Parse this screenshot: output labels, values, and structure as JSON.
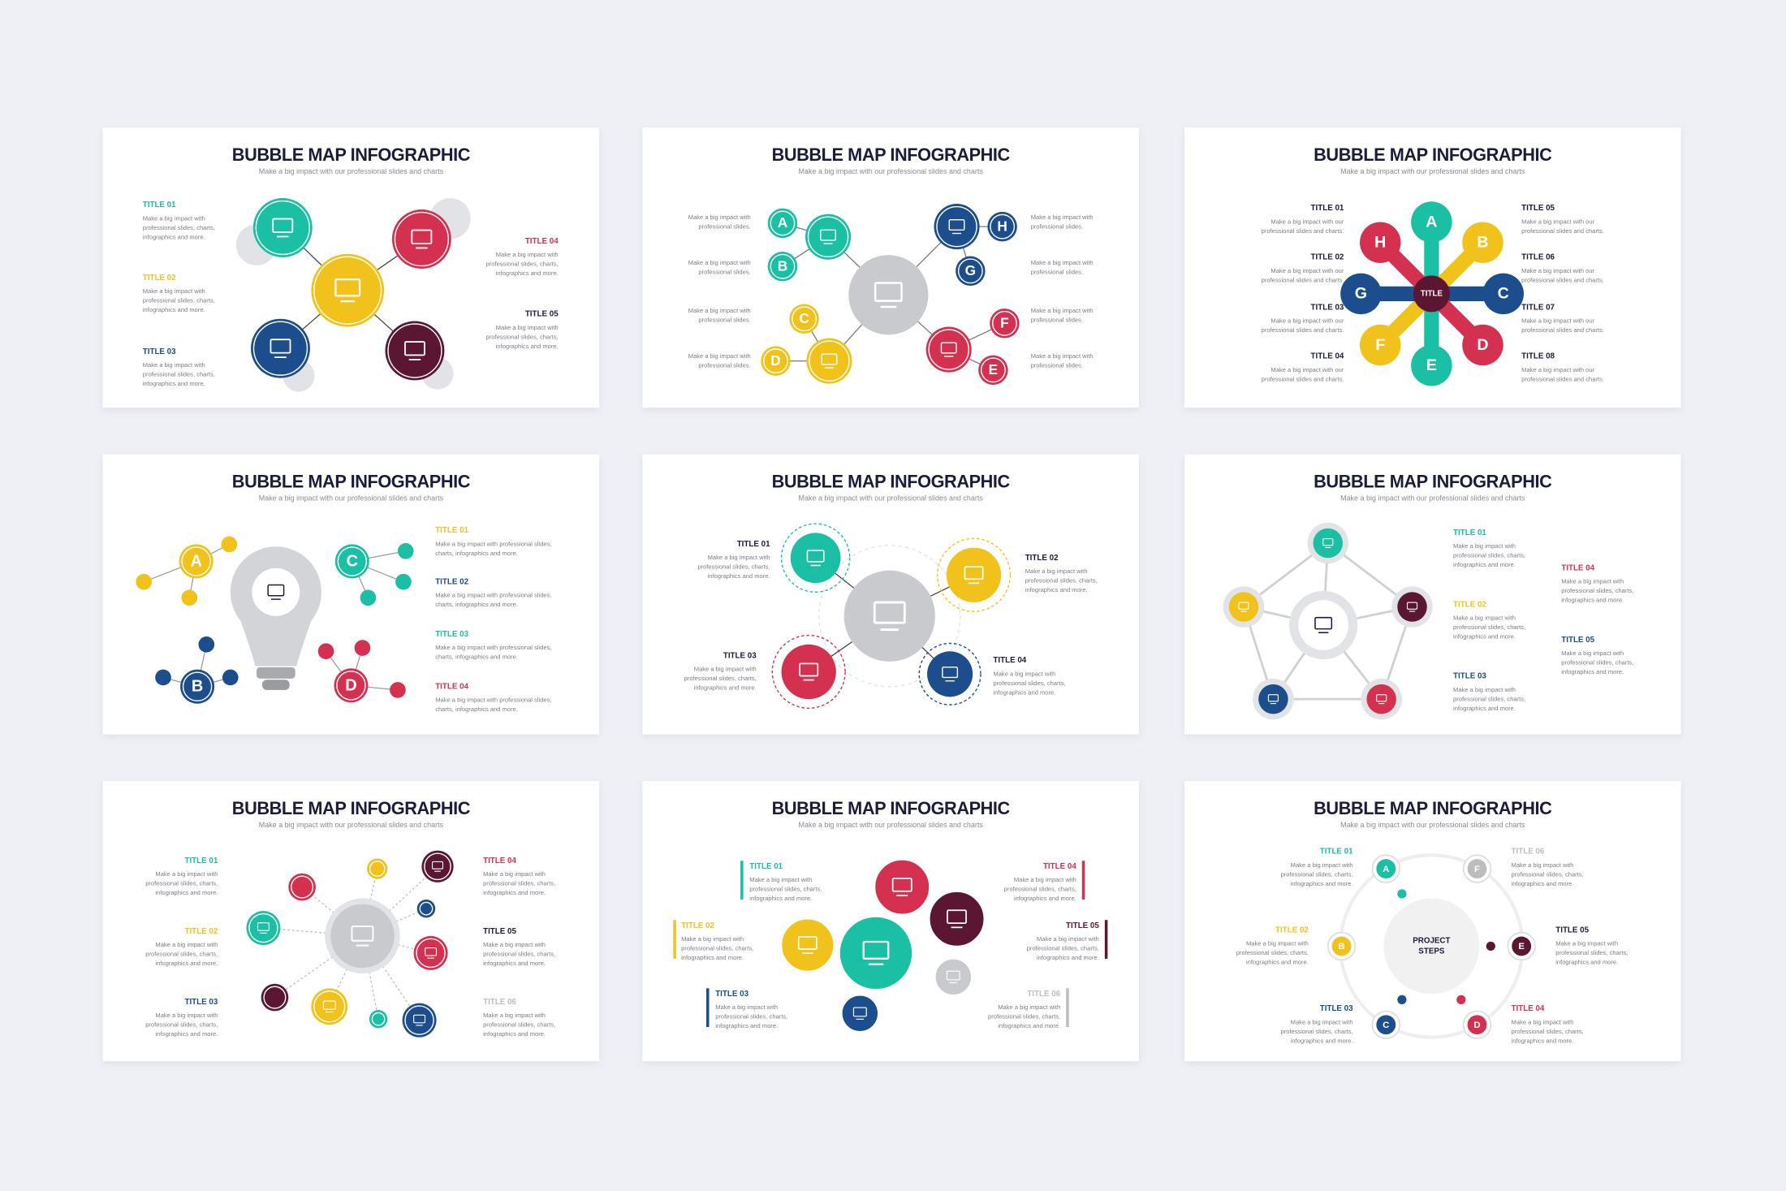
{
  "slides": [
    {
      "title": "BUBBLE MAP INFOGRAPHIC",
      "subtitle": "Make a big impact with our professional slides and charts",
      "items": [
        {
          "title": "TITLE 01",
          "text": [
            "Make a big impact with",
            "professional slides, charts,",
            "infographics and more."
          ]
        },
        {
          "title": "TITLE 02",
          "text": [
            "Make a big impact with",
            "professional slides, charts,",
            "infographics and more."
          ]
        },
        {
          "title": "TITLE 03",
          "text": [
            "Make a big impact with",
            "professional slides, charts,",
            "infographics and more."
          ]
        },
        {
          "title": "TITLE 04",
          "text": [
            "Make a big impact with",
            "professional slides, charts,",
            "infographics and more."
          ]
        },
        {
          "title": "TITLE 05",
          "text": [
            "Make a big impact with",
            "professional slides, charts,",
            "infographics and more."
          ]
        }
      ]
    },
    {
      "title": "BUBBLE MAP INFOGRAPHIC",
      "subtitle": "Make a big impact with our professional slides and charts",
      "bubbles": [
        "A",
        "B",
        "C",
        "D",
        "E",
        "F",
        "G",
        "H"
      ],
      "items": [
        {
          "text": [
            "Make a big impact with",
            "professional slides."
          ]
        },
        {
          "text": [
            "Make a big impact with",
            "professional slides."
          ]
        },
        {
          "text": [
            "Make a big impact with",
            "professional slides."
          ]
        },
        {
          "text": [
            "Make a big impact with",
            "professional slides."
          ]
        },
        {
          "text": [
            "Make a big impact with",
            "professional slides."
          ]
        },
        {
          "text": [
            "Make a big impact with",
            "professional slides."
          ]
        },
        {
          "text": [
            "Make a big impact with",
            "professional slides."
          ]
        },
        {
          "text": [
            "Make a big impact with",
            "professional slides."
          ]
        }
      ]
    },
    {
      "title": "BUBBLE MAP INFOGRAPHIC",
      "subtitle": "Make a big impact with our professional slides and charts",
      "center": [
        "TITLE"
      ],
      "bubbles": [
        "A",
        "B",
        "C",
        "D",
        "E",
        "F",
        "G",
        "H"
      ],
      "items": [
        {
          "title": "TITLE 01",
          "text": [
            "Make a big impact with our",
            "professional slides and charts."
          ]
        },
        {
          "title": "TITLE 02",
          "text": [
            "Make a big impact with our",
            "professional slides and charts."
          ]
        },
        {
          "title": "TITLE 03",
          "text": [
            "Make a big impact with our",
            "professional slides and charts."
          ]
        },
        {
          "title": "TITLE 04",
          "text": [
            "Make a big impact with our",
            "professional slides and charts."
          ]
        },
        {
          "title": "TITLE 05",
          "text": [
            "Make a big impact with our",
            "professional slides and charts."
          ]
        },
        {
          "title": "TITLE 06",
          "text": [
            "Make a big impact with our",
            "professional slides and charts."
          ]
        },
        {
          "title": "TITLE 07",
          "text": [
            "Make a big impact with our",
            "professional slides and charts."
          ]
        },
        {
          "title": "TITLE 08",
          "text": [
            "Make a big impact with our",
            "professional slides and charts."
          ]
        }
      ]
    },
    {
      "title": "BUBBLE MAP INFOGRAPHIC",
      "subtitle": "Make a big impact with our professional slides and charts",
      "bubbles": [
        "A",
        "B",
        "C",
        "D"
      ],
      "items": [
        {
          "title": "TITLE 01",
          "text": [
            "Make a big impact with professional slides,",
            "charts, infographics and more."
          ]
        },
        {
          "title": "TITLE 02",
          "text": [
            "Make a big impact with professional slides,",
            "charts, infographics and more."
          ]
        },
        {
          "title": "TITLE 03",
          "text": [
            "Make a big impact with professional slides,",
            "charts, infographics and more."
          ]
        },
        {
          "title": "TITLE 04",
          "text": [
            "Make a big impact with professional slides,",
            "charts, infographics and more."
          ]
        }
      ]
    },
    {
      "title": "BUBBLE MAP INFOGRAPHIC",
      "subtitle": "Make a big impact with our professional slides and charts",
      "items": [
        {
          "title": "TITLE 01",
          "text": [
            "Make a big impact with",
            "professional slides, charts,",
            "infographics and more."
          ]
        },
        {
          "title": "TITLE 02",
          "text": [
            "Make a big impact with",
            "professional slides, charts,",
            "infographics and more."
          ]
        },
        {
          "title": "TITLE 03",
          "text": [
            "Make a big impact with",
            "professional slides, charts,",
            "infographics and more."
          ]
        },
        {
          "title": "TITLE 04",
          "text": [
            "Make a big impact with",
            "professional slides, charts,",
            "infographics and more."
          ]
        }
      ]
    },
    {
      "title": "BUBBLE MAP INFOGRAPHIC",
      "subtitle": "Make a big impact with our professional slides and charts",
      "items": [
        {
          "title": "TITLE 01",
          "text": [
            "Make a big impact with",
            "professional slides, charts,",
            "infographics and more."
          ]
        },
        {
          "title": "TITLE 02",
          "text": [
            "Make a big impact with",
            "professional slides, charts,",
            "infographics and more."
          ]
        },
        {
          "title": "TITLE 03",
          "text": [
            "Make a big impact with",
            "professional slides, charts,",
            "infographics and more."
          ]
        },
        {
          "title": "TITLE 04",
          "text": [
            "Make a big impact with",
            "professional slides, charts,",
            "infographics and more."
          ]
        },
        {
          "title": "TITLE 05",
          "text": [
            "Make a big impact with",
            "professional slides, charts,",
            "infographics and more."
          ]
        }
      ]
    },
    {
      "title": "BUBBLE MAP INFOGRAPHIC",
      "subtitle": "Make a big impact with our professional slides and charts",
      "items": [
        {
          "title": "TITLE 01",
          "text": [
            "Make a big impact with",
            "professional slides, charts,",
            "infographics and more."
          ]
        },
        {
          "title": "TITLE 02",
          "text": [
            "Make a big impact with",
            "professional slides, charts,",
            "infographics and more."
          ]
        },
        {
          "title": "TITLE 03",
          "text": [
            "Make a big impact with",
            "professional slides, charts,",
            "infographics and more."
          ]
        },
        {
          "title": "TITLE 04",
          "text": [
            "Make a big impact with",
            "professional slides, charts,",
            "infographics and more."
          ]
        },
        {
          "title": "TITLE 05",
          "text": [
            "Make a big impact with",
            "professional slides, charts,",
            "infographics and more."
          ]
        },
        {
          "title": "TITLE 06",
          "text": [
            "Make a big impact with",
            "professional slides, charts,",
            "infographics and more."
          ]
        }
      ]
    },
    {
      "title": "BUBBLE MAP INFOGRAPHIC",
      "subtitle": "Make a big impact with our professional slides and charts",
      "items": [
        {
          "title": "TITLE 01",
          "text": [
            "Make a big impact with",
            "professional slides, charts,",
            "infographics and more."
          ]
        },
        {
          "title": "TITLE 02",
          "text": [
            "Make a big impact with",
            "professional slides, charts,",
            "infographics and more."
          ]
        },
        {
          "title": "TITLE 03",
          "text": [
            "Make a big impact with",
            "professional slides, charts,",
            "infographics and more."
          ]
        },
        {
          "title": "TITLE 04",
          "text": [
            "Make a big impact with",
            "professional slides, charts,",
            "infographics and more."
          ]
        },
        {
          "title": "TITLE 05",
          "text": [
            "Make a big impact with",
            "professional slides, charts,",
            "infographics and more."
          ]
        },
        {
          "title": "TITLE 06",
          "text": [
            "Make a big impact with",
            "professional slides, charts,",
            "infographics and more."
          ]
        }
      ]
    },
    {
      "title": "BUBBLE MAP INFOGRAPHIC",
      "subtitle": "Make a big impact with our professional slides and charts",
      "center": [
        "PROJECT",
        "STEPS"
      ],
      "bubbles": [
        "A",
        "B",
        "C",
        "D",
        "E",
        "F"
      ],
      "items": [
        {
          "title": "TITLE 01",
          "text": [
            "Make a big impact with",
            "professional slides, charts,",
            "infographics and more."
          ]
        },
        {
          "title": "TITLE 02",
          "text": [
            "Make a big impact with",
            "professional slides, charts,",
            "infographics and more."
          ]
        },
        {
          "title": "TITLE 03",
          "text": [
            "Make a big impact with",
            "professional slides, charts,",
            "infographics and more."
          ]
        },
        {
          "title": "TITLE 04",
          "text": [
            "Make a big impact with",
            "professional slides, charts,",
            "infographics and more."
          ]
        },
        {
          "title": "TITLE 05",
          "text": [
            "Make a big impact with",
            "professional slides, charts,",
            "infographics and more."
          ]
        },
        {
          "title": "TITLE 06",
          "text": [
            "Make a big impact with",
            "professional slides, charts,",
            "infographics and more."
          ]
        }
      ]
    }
  ]
}
